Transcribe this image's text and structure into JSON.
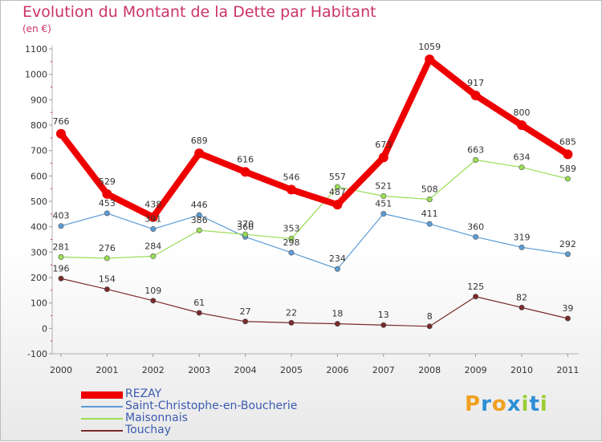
{
  "header": {
    "title": "Evolution du Montant de la Dette par Habitant",
    "unit": "(en €)"
  },
  "brand": {
    "letters": [
      "P",
      "r",
      "o",
      "x",
      "i",
      "t",
      "i"
    ],
    "colors": [
      "#f0a020",
      "#2d8fd6",
      "#f0a020",
      "#2d8fd6",
      "#9acd32",
      "#2d8fd6",
      "#9acd32"
    ]
  },
  "chart_data": {
    "type": "line",
    "x": [
      "2000",
      "2001",
      "2002",
      "2003",
      "2004",
      "2005",
      "2006",
      "2007",
      "2008",
      "2009",
      "2010",
      "2011"
    ],
    "ylim": [
      -100,
      1100
    ],
    "yticks": [
      "-100",
      "0",
      "100",
      "200",
      "300",
      "400",
      "500",
      "600",
      "700",
      "800",
      "900",
      "1000",
      "1100"
    ],
    "grid": false,
    "legend_position": "bottom-left",
    "series": [
      {
        "name": "REZAY",
        "color": "#ee0000",
        "values": [
          766,
          529,
          438,
          689,
          616,
          546,
          487,
          673,
          1059,
          917,
          800,
          685
        ],
        "labels": [
          "766",
          "529",
          "438",
          "689",
          "616",
          "546",
          "487",
          "673",
          "1059",
          "917",
          "800",
          "685"
        ],
        "thick": true
      },
      {
        "name": "Saint-Christophe-en-Boucherie",
        "color": "#5b9bd5",
        "values": [
          403,
          453,
          391,
          446,
          360,
          298,
          234,
          451,
          411,
          360,
          319,
          292
        ],
        "labels": [
          "403",
          "453",
          "391",
          "446",
          "360",
          "298",
          "234",
          "451",
          "411",
          "360",
          "319",
          "292"
        ],
        "thick": false
      },
      {
        "name": "Maisonnais",
        "color": "#99dd55",
        "values": [
          281,
          276,
          284,
          386,
          370,
          353,
          557,
          521,
          508,
          663,
          634,
          589
        ],
        "labels": [
          "281",
          "276",
          "284",
          "386",
          "370",
          "353",
          "557",
          "521",
          "508",
          "663",
          "634",
          "589"
        ],
        "thick": false
      },
      {
        "name": "Touchay",
        "color": "#7a2a2a",
        "values": [
          196,
          154,
          109,
          61,
          27,
          22,
          18,
          13,
          8,
          125,
          82,
          39
        ],
        "labels": [
          "196",
          "154",
          "109",
          "61",
          "27",
          "22",
          "18",
          "13",
          "8",
          "125",
          "82",
          "39"
        ],
        "thick": false
      }
    ]
  }
}
